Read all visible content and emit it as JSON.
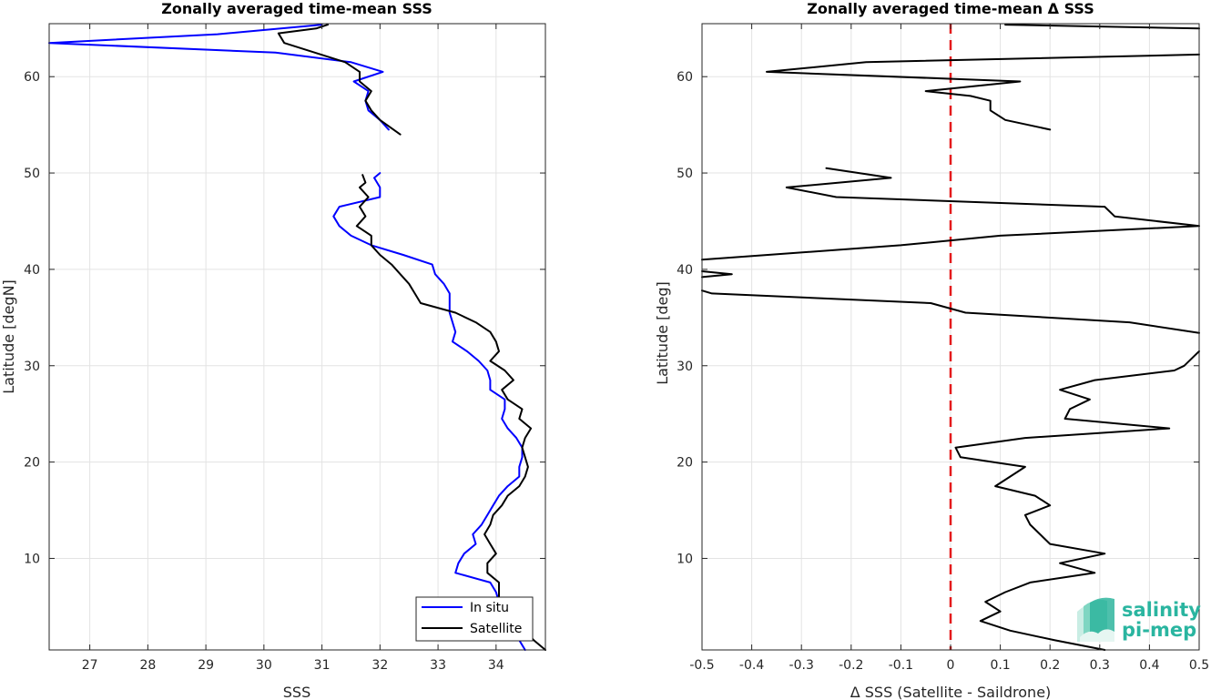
{
  "chart_data": [
    {
      "type": "line",
      "title": "Zonally averaged time-mean SSS",
      "xlabel": "SSS",
      "ylabel": "Latitude [degN]",
      "xlim": [
        26.3,
        34.85
      ],
      "ylim": [
        0.5,
        65.5
      ],
      "xticks": [
        27,
        28,
        29,
        30,
        31,
        32,
        33,
        34
      ],
      "yticks": [
        10,
        20,
        30,
        40,
        50,
        60
      ],
      "grid": true,
      "legend": {
        "placement": "bottom-right",
        "entries": [
          "In situ",
          "Satellite"
        ]
      },
      "series": [
        {
          "name": "In situ",
          "color": "#0000ff",
          "segments": [
            [
              [
                31.0,
                65.4
              ],
              [
                29.2,
                64.4
              ],
              [
                26.3,
                63.5
              ],
              [
                30.2,
                62.5
              ],
              [
                31.5,
                61.5
              ],
              [
                32.05,
                60.5
              ],
              [
                31.55,
                59.5
              ],
              [
                31.8,
                58.5
              ],
              [
                31.75,
                57.5
              ],
              [
                31.8,
                56.5
              ],
              [
                32.0,
                55.5
              ],
              [
                32.15,
                54.5
              ]
            ],
            [
              [
                32.0,
                50.0
              ],
              [
                31.9,
                49.5
              ],
              [
                32.0,
                48.5
              ],
              [
                32.0,
                47.5
              ],
              [
                31.3,
                46.5
              ],
              [
                31.2,
                45.5
              ],
              [
                31.3,
                44.5
              ],
              [
                31.5,
                43.5
              ],
              [
                31.85,
                42.5
              ],
              [
                32.4,
                41.5
              ],
              [
                32.9,
                40.5
              ],
              [
                32.95,
                39.5
              ],
              [
                33.1,
                38.5
              ],
              [
                33.2,
                37.5
              ],
              [
                33.2,
                36.5
              ],
              [
                33.2,
                35.5
              ],
              [
                33.25,
                34.5
              ],
              [
                33.3,
                33.5
              ],
              [
                33.25,
                32.5
              ],
              [
                33.5,
                31.5
              ],
              [
                33.7,
                30.5
              ],
              [
                33.85,
                29.5
              ],
              [
                33.9,
                28.5
              ],
              [
                33.9,
                27.5
              ],
              [
                34.15,
                26.5
              ],
              [
                34.15,
                25.5
              ],
              [
                34.1,
                24.5
              ],
              [
                34.2,
                23.5
              ],
              [
                34.35,
                22.5
              ],
              [
                34.45,
                21.5
              ],
              [
                34.45,
                20.5
              ],
              [
                34.4,
                19.5
              ],
              [
                34.4,
                18.5
              ],
              [
                34.2,
                17.5
              ],
              [
                34.05,
                16.5
              ],
              [
                33.95,
                15.5
              ],
              [
                33.85,
                14.5
              ],
              [
                33.75,
                13.5
              ],
              [
                33.6,
                12.5
              ],
              [
                33.65,
                11.5
              ],
              [
                33.45,
                10.5
              ],
              [
                33.35,
                9.5
              ],
              [
                33.3,
                8.5
              ],
              [
                33.9,
                7.5
              ],
              [
                34.0,
                6.5
              ],
              [
                34.05,
                5.5
              ],
              [
                34.15,
                4.5
              ],
              [
                34.25,
                3.5
              ],
              [
                34.3,
                2.5
              ],
              [
                34.4,
                1.5
              ],
              [
                34.5,
                0.5
              ]
            ]
          ]
        },
        {
          "name": "Satellite",
          "color": "#000000",
          "segments": [
            [
              [
                31.1,
                65.4
              ],
              [
                30.9,
                65.0
              ],
              [
                30.25,
                64.5
              ],
              [
                30.35,
                63.5
              ],
              [
                31.4,
                61.5
              ],
              [
                31.65,
                60.5
              ],
              [
                31.65,
                59.5
              ],
              [
                31.85,
                58.5
              ],
              [
                31.75,
                57.5
              ],
              [
                31.85,
                56.5
              ],
              [
                32.0,
                55.5
              ],
              [
                32.35,
                54.0
              ]
            ],
            [
              [
                31.7,
                49.8
              ],
              [
                31.75,
                49.0
              ],
              [
                31.65,
                48.5
              ],
              [
                31.8,
                47.5
              ],
              [
                31.65,
                46.5
              ],
              [
                31.75,
                45.5
              ],
              [
                31.6,
                44.5
              ],
              [
                31.85,
                43.5
              ],
              [
                31.85,
                42.5
              ],
              [
                32.0,
                41.5
              ],
              [
                32.2,
                40.5
              ],
              [
                32.35,
                39.5
              ],
              [
                32.5,
                38.5
              ],
              [
                32.6,
                37.5
              ],
              [
                32.7,
                36.5
              ],
              [
                33.3,
                35.5
              ],
              [
                33.65,
                34.5
              ],
              [
                33.9,
                33.5
              ],
              [
                34.0,
                32.5
              ],
              [
                34.05,
                31.5
              ],
              [
                33.9,
                30.5
              ],
              [
                34.15,
                29.5
              ],
              [
                34.3,
                28.5
              ],
              [
                34.1,
                27.5
              ],
              [
                34.2,
                26.5
              ],
              [
                34.45,
                25.5
              ],
              [
                34.4,
                24.5
              ],
              [
                34.6,
                23.5
              ],
              [
                34.5,
                22.5
              ],
              [
                34.45,
                21.5
              ],
              [
                34.5,
                20.5
              ],
              [
                34.55,
                19.5
              ],
              [
                34.5,
                18.5
              ],
              [
                34.4,
                17.5
              ],
              [
                34.2,
                16.5
              ],
              [
                34.1,
                15.5
              ],
              [
                33.95,
                14.5
              ],
              [
                33.9,
                13.5
              ],
              [
                33.8,
                12.5
              ],
              [
                33.9,
                11.5
              ],
              [
                34.0,
                10.5
              ],
              [
                33.85,
                9.5
              ],
              [
                33.85,
                8.5
              ],
              [
                34.05,
                7.5
              ],
              [
                34.05,
                6.5
              ],
              [
                34.05,
                5.5
              ],
              [
                34.25,
                4.5
              ],
              [
                34.4,
                3.5
              ],
              [
                34.5,
                2.5
              ],
              [
                34.65,
                1.5
              ],
              [
                34.85,
                0.5
              ]
            ]
          ]
        }
      ]
    },
    {
      "type": "line",
      "title": "Zonally averaged time-mean Δ SSS",
      "xlabel": "Δ SSS (Satellite - Saildrone)",
      "ylabel": "Latitude [deg]",
      "xlim": [
        -0.5,
        0.5
      ],
      "ylim": [
        0.5,
        65.5
      ],
      "xticks": [
        -0.5,
        -0.4,
        -0.3,
        -0.2,
        -0.1,
        0,
        0.1,
        0.2,
        0.3,
        0.4,
        0.5
      ],
      "xtick_labels": [
        "-0.5",
        "-0.4",
        "-0.3",
        "-0.2",
        "-0.1",
        "0",
        "0.1",
        "0.2",
        "0.3",
        "0.4",
        "0.5"
      ],
      "yticks": [
        10,
        20,
        30,
        40,
        50,
        60
      ],
      "grid": true,
      "reference_line": {
        "x": 0,
        "color": "#e41a1c",
        "style": "dashed"
      },
      "series": [
        {
          "name": "",
          "color": "#000000",
          "segments": [
            [
              [
                0.11,
                65.4
              ],
              [
                0.5,
                65.0
              ]
            ],
            [
              [
                0.5,
                62.3
              ],
              [
                -0.17,
                61.5
              ],
              [
                -0.37,
                60.5
              ],
              [
                0.14,
                59.5
              ],
              [
                -0.05,
                58.5
              ],
              [
                0.04,
                58.0
              ],
              [
                0.08,
                57.5
              ],
              [
                0.08,
                56.5
              ],
              [
                0.11,
                55.5
              ],
              [
                0.2,
                54.5
              ]
            ],
            [
              [
                -0.25,
                50.5
              ],
              [
                -0.12,
                49.5
              ],
              [
                -0.33,
                48.5
              ],
              [
                -0.23,
                47.5
              ],
              [
                0.31,
                46.5
              ],
              [
                0.33,
                45.5
              ],
              [
                0.5,
                44.5
              ],
              [
                0.1,
                43.5
              ],
              [
                -0.1,
                42.5
              ],
              [
                -0.5,
                41.0
              ]
            ],
            [
              [
                -0.5,
                39.8
              ],
              [
                -0.44,
                39.5
              ],
              [
                -0.5,
                39.2
              ]
            ],
            [
              [
                -0.5,
                37.8
              ],
              [
                -0.48,
                37.5
              ],
              [
                -0.04,
                36.5
              ],
              [
                0.03,
                35.5
              ],
              [
                0.36,
                34.5
              ],
              [
                0.5,
                33.4
              ]
            ],
            [
              [
                0.5,
                31.5
              ],
              [
                0.49,
                31.0
              ],
              [
                0.47,
                30.0
              ],
              [
                0.45,
                29.5
              ],
              [
                0.29,
                28.5
              ],
              [
                0.22,
                27.5
              ],
              [
                0.28,
                26.5
              ],
              [
                0.24,
                25.5
              ],
              [
                0.23,
                24.5
              ],
              [
                0.44,
                23.5
              ],
              [
                0.15,
                22.5
              ],
              [
                0.01,
                21.5
              ],
              [
                0.02,
                20.5
              ],
              [
                0.15,
                19.5
              ],
              [
                0.12,
                18.5
              ],
              [
                0.09,
                17.5
              ],
              [
                0.17,
                16.5
              ],
              [
                0.2,
                15.5
              ],
              [
                0.15,
                14.5
              ],
              [
                0.16,
                13.5
              ],
              [
                0.18,
                12.5
              ],
              [
                0.2,
                11.5
              ],
              [
                0.31,
                10.5
              ],
              [
                0.22,
                9.5
              ],
              [
                0.29,
                8.5
              ],
              [
                0.16,
                7.5
              ],
              [
                0.11,
                6.5
              ],
              [
                0.07,
                5.5
              ],
              [
                0.1,
                4.5
              ],
              [
                0.06,
                3.5
              ],
              [
                0.12,
                2.5
              ],
              [
                0.21,
                1.5
              ],
              [
                0.31,
                0.5
              ]
            ]
          ]
        }
      ]
    }
  ],
  "logo": {
    "line1": "salinity",
    "line2": "pi-mep"
  }
}
